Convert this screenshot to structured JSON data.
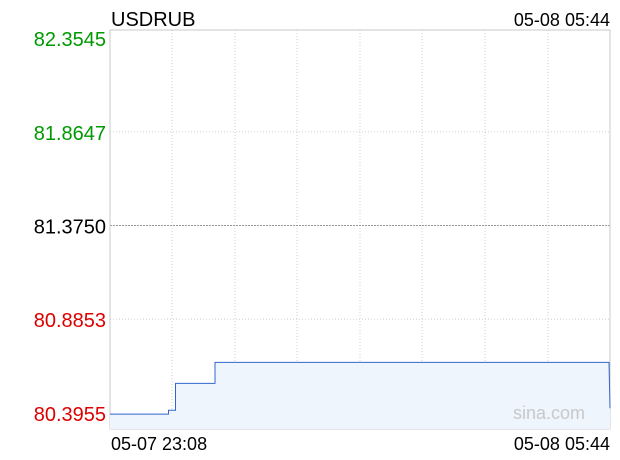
{
  "chart_data": {
    "type": "line",
    "title": "USDRUB",
    "timestamp": "05-08 05:44",
    "watermark": "sina.com",
    "ylim": [
      80.3955,
      82.3545
    ],
    "y_ticks": [
      {
        "value": 82.3545,
        "label": "82.3545",
        "color": "#009900"
      },
      {
        "value": 81.8647,
        "label": "81.8647",
        "color": "#009900"
      },
      {
        "value": 81.375,
        "label": "81.3750",
        "color": "#000000"
      },
      {
        "value": 80.8853,
        "label": "80.8853",
        "color": "#dd0000"
      },
      {
        "value": 80.3955,
        "label": "80.3955",
        "color": "#dd0000"
      }
    ],
    "reference_value": 81.375,
    "x_labels": {
      "start": "05-07 23:08",
      "end": "05-08 05:44"
    },
    "series": [
      {
        "color": "#3366cc",
        "points": [
          [
            0,
            80.39
          ],
          [
            0.117,
            80.39
          ],
          [
            0.117,
            80.41
          ],
          [
            0.131,
            80.41
          ],
          [
            0.131,
            80.55
          ],
          [
            0.21,
            80.55
          ],
          [
            0.21,
            80.66
          ],
          [
            0.998,
            80.66
          ],
          [
            1.0,
            80.42
          ]
        ]
      }
    ],
    "colors": {
      "grid": "#d0d0d0",
      "frame": "#c8c8c8",
      "fill": "#eef5fd"
    }
  }
}
